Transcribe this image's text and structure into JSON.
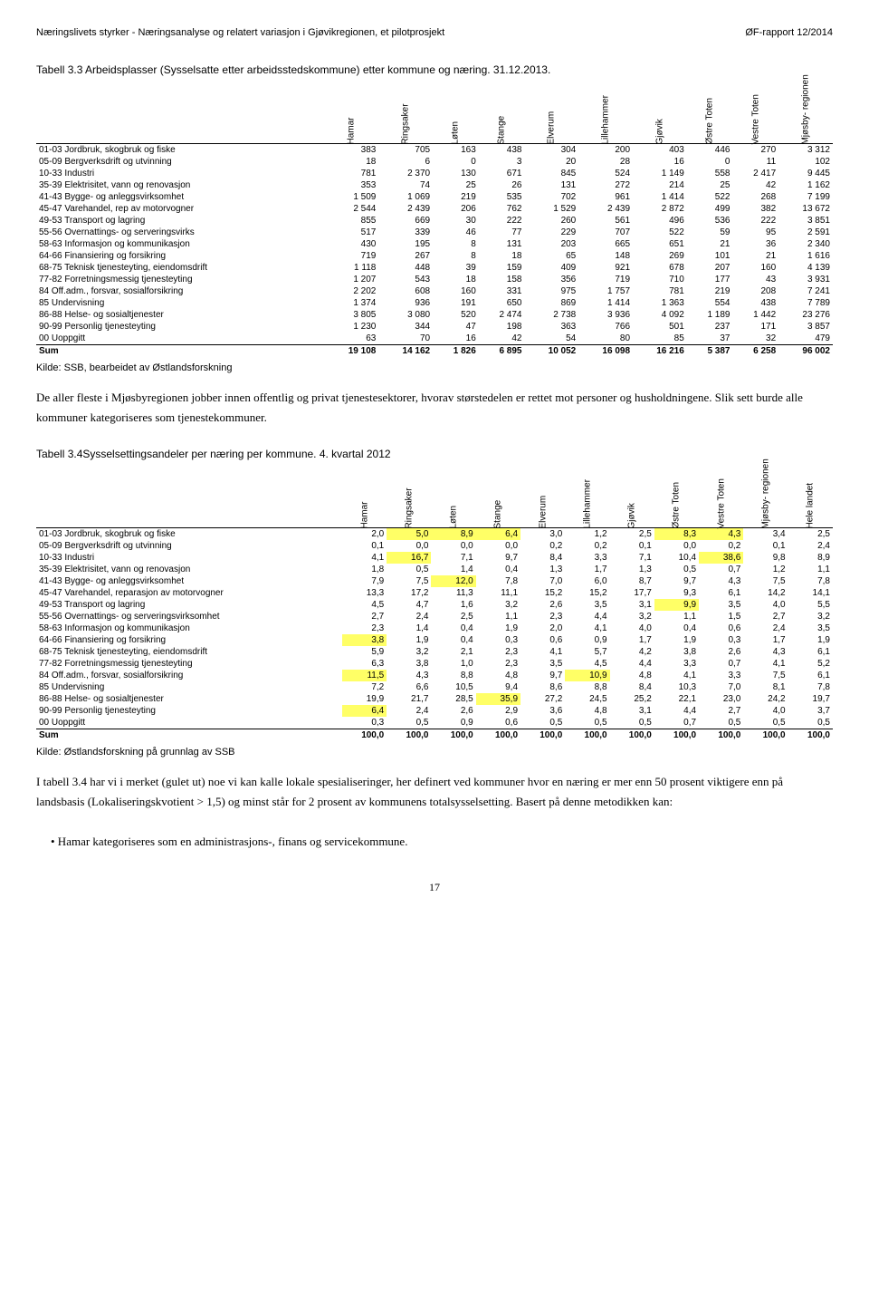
{
  "header": {
    "left": "Næringslivets styrker - Næringsanalyse og relatert variasjon i Gjøvikregionen, et pilotprosjekt",
    "right": "ØF-rapport 12/2014"
  },
  "table3_3": {
    "title": "Tabell 3.3 Arbeidsplasser (Sysselsatte etter arbeidsstedskommune) etter kommune og næring. 31.12.2013.",
    "columns": [
      "Hamar",
      "Ringsaker",
      "Løten",
      "Stange",
      "Elverum",
      "Lillehammer",
      "Gjøvik",
      "Østre Toten",
      "Vestre Toten",
      "Mjøsby-\nregionen"
    ],
    "rowLabels": [
      "01-03 Jordbruk, skogbruk og fiske",
      "05-09 Bergverksdrift og utvinning",
      "10-33 Industri",
      "35-39 Elektrisitet, vann og renovasjon",
      "41-43 Bygge- og anleggsvirksomhet",
      "45-47 Varehandel, rep av motorvogner",
      "49-53 Transport og lagring",
      "55-56 Overnattings- og serveringsvirks",
      "58-63 Informasjon og kommunikasjon",
      "64-66 Finansiering og forsikring",
      "68-75 Teknisk tjenesteyting, eiendomsdrift",
      "77-82 Forretningsmessig tjenesteyting",
      "84 Off.adm., forsvar, sosialforsikring",
      "85 Undervisning",
      "86-88 Helse- og sosialtjenester",
      "90-99 Personlig tjenesteyting",
      "00 Uoppgitt"
    ],
    "rows": [
      [
        "383",
        "705",
        "163",
        "438",
        "304",
        "200",
        "403",
        "446",
        "270",
        "3 312"
      ],
      [
        "18",
        "6",
        "0",
        "3",
        "20",
        "28",
        "16",
        "0",
        "11",
        "102"
      ],
      [
        "781",
        "2 370",
        "130",
        "671",
        "845",
        "524",
        "1 149",
        "558",
        "2 417",
        "9 445"
      ],
      [
        "353",
        "74",
        "25",
        "26",
        "131",
        "272",
        "214",
        "25",
        "42",
        "1 162"
      ],
      [
        "1 509",
        "1 069",
        "219",
        "535",
        "702",
        "961",
        "1 414",
        "522",
        "268",
        "7 199"
      ],
      [
        "2 544",
        "2 439",
        "206",
        "762",
        "1 529",
        "2 439",
        "2 872",
        "499",
        "382",
        "13 672"
      ],
      [
        "855",
        "669",
        "30",
        "222",
        "260",
        "561",
        "496",
        "536",
        "222",
        "3 851"
      ],
      [
        "517",
        "339",
        "46",
        "77",
        "229",
        "707",
        "522",
        "59",
        "95",
        "2 591"
      ],
      [
        "430",
        "195",
        "8",
        "131",
        "203",
        "665",
        "651",
        "21",
        "36",
        "2 340"
      ],
      [
        "719",
        "267",
        "8",
        "18",
        "65",
        "148",
        "269",
        "101",
        "21",
        "1 616"
      ],
      [
        "1 118",
        "448",
        "39",
        "159",
        "409",
        "921",
        "678",
        "207",
        "160",
        "4 139"
      ],
      [
        "1 207",
        "543",
        "18",
        "158",
        "356",
        "719",
        "710",
        "177",
        "43",
        "3 931"
      ],
      [
        "2 202",
        "608",
        "160",
        "331",
        "975",
        "1 757",
        "781",
        "219",
        "208",
        "7 241"
      ],
      [
        "1 374",
        "936",
        "191",
        "650",
        "869",
        "1 414",
        "1 363",
        "554",
        "438",
        "7 789"
      ],
      [
        "3 805",
        "3 080",
        "520",
        "2 474",
        "2 738",
        "3 936",
        "4 092",
        "1 189",
        "1 442",
        "23 276"
      ],
      [
        "1 230",
        "344",
        "47",
        "198",
        "363",
        "766",
        "501",
        "237",
        "171",
        "3 857"
      ],
      [
        "63",
        "70",
        "16",
        "42",
        "54",
        "80",
        "85",
        "37",
        "32",
        "479"
      ]
    ],
    "sumLabel": "Sum",
    "sum": [
      "19 108",
      "14 162",
      "1 826",
      "6 895",
      "10 052",
      "16 098",
      "16 216",
      "5 387",
      "6 258",
      "96 002"
    ],
    "source": "Kilde: SSB, bearbeidet av Østlandsforskning"
  },
  "para1": "De aller fleste i Mjøsbyregionen jobber innen offentlig og privat tjenestesektorer, hvorav størstedelen er rettet mot personer og husholdningene. Slik sett burde alle kommuner kategoriseres som tjenestekommuner.",
  "table3_4": {
    "title": "Tabell 3.4Sysselsettingsandeler per næring per kommune. 4. kvartal 2012",
    "columns": [
      "Hamar",
      "Ringsaker",
      "Løten",
      "Stange",
      "Elverum",
      "Lillehammer",
      "Gjøvik",
      "Østre Toten",
      "Vestre Toten",
      "Mjøsby-\nregionen",
      "Hele landet"
    ],
    "rowLabels": [
      "01-03 Jordbruk, skogbruk og fiske",
      "05-09 Bergverksdrift og utvinning",
      "10-33 Industri",
      "35-39 Elektrisitet, vann og renovasjon",
      "41-43 Bygge- og anleggsvirksomhet",
      "45-47 Varehandel, reparasjon av motorvogner",
      "49-53 Transport og lagring",
      "55-56 Overnattings- og serveringsvirksomhet",
      "58-63 Informasjon og kommunikasjon",
      "64-66 Finansiering og forsikring",
      "68-75 Teknisk tjenesteyting, eiendomsdrift",
      "77-82 Forretningsmessig tjenesteyting",
      "84 Off.adm., forsvar, sosialforsikring",
      "85 Undervisning",
      "86-88 Helse- og sosialtjenester",
      "90-99 Personlig tjenesteyting",
      "00 Uoppgitt"
    ],
    "rows": [
      [
        [
          "2,0",
          0
        ],
        [
          "5,0",
          1
        ],
        [
          "8,9",
          1
        ],
        [
          "6,4",
          1
        ],
        [
          "3,0",
          0
        ],
        [
          "1,2",
          0
        ],
        [
          "2,5",
          0
        ],
        [
          "8,3",
          1
        ],
        [
          "4,3",
          1
        ],
        [
          "3,4",
          0
        ],
        [
          "2,5",
          0
        ]
      ],
      [
        [
          "0,1",
          0
        ],
        [
          "0,0",
          0
        ],
        [
          "0,0",
          0
        ],
        [
          "0,0",
          0
        ],
        [
          "0,2",
          0
        ],
        [
          "0,2",
          0
        ],
        [
          "0,1",
          0
        ],
        [
          "0,0",
          0
        ],
        [
          "0,2",
          0
        ],
        [
          "0,1",
          0
        ],
        [
          "2,4",
          0
        ]
      ],
      [
        [
          "4,1",
          0
        ],
        [
          "16,7",
          1
        ],
        [
          "7,1",
          0
        ],
        [
          "9,7",
          0
        ],
        [
          "8,4",
          0
        ],
        [
          "3,3",
          0
        ],
        [
          "7,1",
          0
        ],
        [
          "10,4",
          0
        ],
        [
          "38,6",
          1
        ],
        [
          "9,8",
          0
        ],
        [
          "8,9",
          0
        ]
      ],
      [
        [
          "1,8",
          0
        ],
        [
          "0,5",
          0
        ],
        [
          "1,4",
          0
        ],
        [
          "0,4",
          0
        ],
        [
          "1,3",
          0
        ],
        [
          "1,7",
          0
        ],
        [
          "1,3",
          0
        ],
        [
          "0,5",
          0
        ],
        [
          "0,7",
          0
        ],
        [
          "1,2",
          0
        ],
        [
          "1,1",
          0
        ]
      ],
      [
        [
          "7,9",
          0
        ],
        [
          "7,5",
          0
        ],
        [
          "12,0",
          1
        ],
        [
          "7,8",
          0
        ],
        [
          "7,0",
          0
        ],
        [
          "6,0",
          0
        ],
        [
          "8,7",
          0
        ],
        [
          "9,7",
          0
        ],
        [
          "4,3",
          0
        ],
        [
          "7,5",
          0
        ],
        [
          "7,8",
          0
        ]
      ],
      [
        [
          "13,3",
          0
        ],
        [
          "17,2",
          0
        ],
        [
          "11,3",
          0
        ],
        [
          "11,1",
          0
        ],
        [
          "15,2",
          0
        ],
        [
          "15,2",
          0
        ],
        [
          "17,7",
          0
        ],
        [
          "9,3",
          0
        ],
        [
          "6,1",
          0
        ],
        [
          "14,2",
          0
        ],
        [
          "14,1",
          0
        ]
      ],
      [
        [
          "4,5",
          0
        ],
        [
          "4,7",
          0
        ],
        [
          "1,6",
          0
        ],
        [
          "3,2",
          0
        ],
        [
          "2,6",
          0
        ],
        [
          "3,5",
          0
        ],
        [
          "3,1",
          0
        ],
        [
          "9,9",
          1
        ],
        [
          "3,5",
          0
        ],
        [
          "4,0",
          0
        ],
        [
          "5,5",
          0
        ]
      ],
      [
        [
          "2,7",
          0
        ],
        [
          "2,4",
          0
        ],
        [
          "2,5",
          0
        ],
        [
          "1,1",
          0
        ],
        [
          "2,3",
          0
        ],
        [
          "4,4",
          0
        ],
        [
          "3,2",
          0
        ],
        [
          "1,1",
          0
        ],
        [
          "1,5",
          0
        ],
        [
          "2,7",
          0
        ],
        [
          "3,2",
          0
        ]
      ],
      [
        [
          "2,3",
          0
        ],
        [
          "1,4",
          0
        ],
        [
          "0,4",
          0
        ],
        [
          "1,9",
          0
        ],
        [
          "2,0",
          0
        ],
        [
          "4,1",
          0
        ],
        [
          "4,0",
          0
        ],
        [
          "0,4",
          0
        ],
        [
          "0,6",
          0
        ],
        [
          "2,4",
          0
        ],
        [
          "3,5",
          0
        ]
      ],
      [
        [
          "3,8",
          1
        ],
        [
          "1,9",
          0
        ],
        [
          "0,4",
          0
        ],
        [
          "0,3",
          0
        ],
        [
          "0,6",
          0
        ],
        [
          "0,9",
          0
        ],
        [
          "1,7",
          0
        ],
        [
          "1,9",
          0
        ],
        [
          "0,3",
          0
        ],
        [
          "1,7",
          0
        ],
        [
          "1,9",
          0
        ]
      ],
      [
        [
          "5,9",
          0
        ],
        [
          "3,2",
          0
        ],
        [
          "2,1",
          0
        ],
        [
          "2,3",
          0
        ],
        [
          "4,1",
          0
        ],
        [
          "5,7",
          0
        ],
        [
          "4,2",
          0
        ],
        [
          "3,8",
          0
        ],
        [
          "2,6",
          0
        ],
        [
          "4,3",
          0
        ],
        [
          "6,1",
          0
        ]
      ],
      [
        [
          "6,3",
          0
        ],
        [
          "3,8",
          0
        ],
        [
          "1,0",
          0
        ],
        [
          "2,3",
          0
        ],
        [
          "3,5",
          0
        ],
        [
          "4,5",
          0
        ],
        [
          "4,4",
          0
        ],
        [
          "3,3",
          0
        ],
        [
          "0,7",
          0
        ],
        [
          "4,1",
          0
        ],
        [
          "5,2",
          0
        ]
      ],
      [
        [
          "11,5",
          1
        ],
        [
          "4,3",
          0
        ],
        [
          "8,8",
          0
        ],
        [
          "4,8",
          0
        ],
        [
          "9,7",
          0
        ],
        [
          "10,9",
          1
        ],
        [
          "4,8",
          0
        ],
        [
          "4,1",
          0
        ],
        [
          "3,3",
          0
        ],
        [
          "7,5",
          0
        ],
        [
          "6,1",
          0
        ]
      ],
      [
        [
          "7,2",
          0
        ],
        [
          "6,6",
          0
        ],
        [
          "10,5",
          0
        ],
        [
          "9,4",
          0
        ],
        [
          "8,6",
          0
        ],
        [
          "8,8",
          0
        ],
        [
          "8,4",
          0
        ],
        [
          "10,3",
          0
        ],
        [
          "7,0",
          0
        ],
        [
          "8,1",
          0
        ],
        [
          "7,8",
          0
        ]
      ],
      [
        [
          "19,9",
          0
        ],
        [
          "21,7",
          0
        ],
        [
          "28,5",
          0
        ],
        [
          "35,9",
          1
        ],
        [
          "27,2",
          0
        ],
        [
          "24,5",
          0
        ],
        [
          "25,2",
          0
        ],
        [
          "22,1",
          0
        ],
        [
          "23,0",
          0
        ],
        [
          "24,2",
          0
        ],
        [
          "19,7",
          0
        ]
      ],
      [
        [
          "6,4",
          1
        ],
        [
          "2,4",
          0
        ],
        [
          "2,6",
          0
        ],
        [
          "2,9",
          0
        ],
        [
          "3,6",
          0
        ],
        [
          "4,8",
          0
        ],
        [
          "3,1",
          0
        ],
        [
          "4,4",
          0
        ],
        [
          "2,7",
          0
        ],
        [
          "4,0",
          0
        ],
        [
          "3,7",
          0
        ]
      ],
      [
        [
          "0,3",
          0
        ],
        [
          "0,5",
          0
        ],
        [
          "0,9",
          0
        ],
        [
          "0,6",
          0
        ],
        [
          "0,5",
          0
        ],
        [
          "0,5",
          0
        ],
        [
          "0,5",
          0
        ],
        [
          "0,7",
          0
        ],
        [
          "0,5",
          0
        ],
        [
          "0,5",
          0
        ],
        [
          "0,5",
          0
        ]
      ]
    ],
    "sumLabel": "Sum",
    "sum": [
      "100,0",
      "100,0",
      "100,0",
      "100,0",
      "100,0",
      "100,0",
      "100,0",
      "100,0",
      "100,0",
      "100,0",
      "100,0"
    ],
    "source": "Kilde: Østlandsforskning på grunnlag av SSB"
  },
  "para2": "I tabell 3.4 har vi i merket (gulet ut) noe vi kan kalle lokale spesialiseringer, her definert ved kommuner hvor en næring er mer enn 50 prosent viktigere enn på landsbasis (Lokaliseringskvotient > 1,5) og minst står for 2 prosent av kommunens totalsysselsetting. Basert på denne metodikken kan:",
  "bullet1": "•  Hamar kategoriseres som en administrasjons-, finans og servicekommune.",
  "pageNum": "17"
}
